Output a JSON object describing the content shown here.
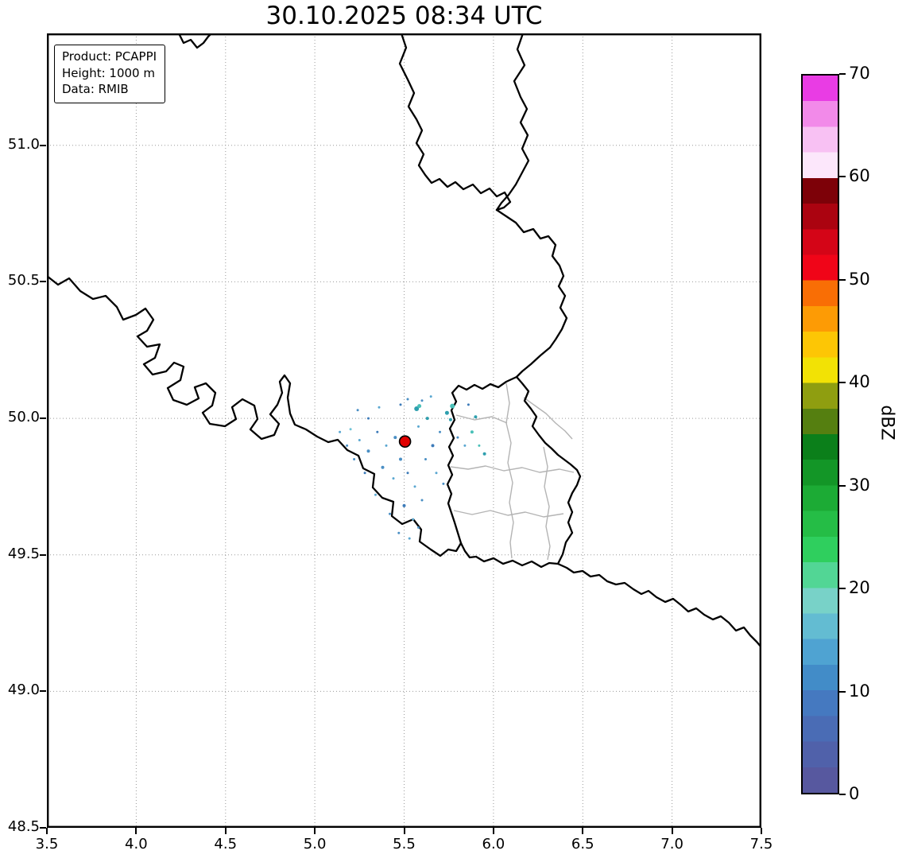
{
  "title": "30.10.2025 08:34 UTC",
  "info_box": {
    "lines": [
      "Product: PCAPPI",
      "Height: 1000 m",
      "Data: RMIB"
    ]
  },
  "chart_data": {
    "type": "map",
    "title": "30.10.2025 08:34 UTC",
    "xlim": [
      3.5,
      7.5
    ],
    "ylim": [
      48.5,
      51.41
    ],
    "x_ticks": [
      3.5,
      4.0,
      4.5,
      5.0,
      5.5,
      6.0,
      6.5,
      7.0,
      7.5
    ],
    "x_tick_labels": [
      "3.5",
      "4.0",
      "4.5",
      "5.0",
      "5.5",
      "6.0",
      "6.5",
      "7.0",
      "7.5"
    ],
    "y_ticks": [
      48.5,
      49.0,
      49.5,
      50.0,
      50.5,
      51.0
    ],
    "y_tick_labels": [
      "48.5",
      "49.0",
      "49.5",
      "50.0",
      "50.5",
      "51.0"
    ],
    "grid": true,
    "radar_site": {
      "lon": 5.505,
      "lat": 49.915,
      "color": "#e00000",
      "r": 7
    },
    "echo_colors": [
      "#4a8fc4",
      "#5aa7d1",
      "#3d7bb9",
      "#6fc3d6",
      "#2e9fae",
      "#49c0b8"
    ],
    "echoes": [
      [
        5.45,
        49.93,
        2,
        0
      ],
      [
        5.4,
        49.9,
        1.5,
        1
      ],
      [
        5.35,
        49.95,
        1.5,
        2
      ],
      [
        5.3,
        49.88,
        2,
        0
      ],
      [
        5.25,
        49.92,
        1.5,
        1
      ],
      [
        5.2,
        49.96,
        1.5,
        3
      ],
      [
        5.48,
        49.85,
        2,
        0
      ],
      [
        5.52,
        49.8,
        1.5,
        2
      ],
      [
        5.44,
        49.78,
        1.5,
        1
      ],
      [
        5.38,
        49.82,
        2,
        0
      ],
      [
        5.56,
        49.75,
        1.5,
        1
      ],
      [
        5.6,
        49.7,
        1.5,
        0
      ],
      [
        5.5,
        49.68,
        2,
        2
      ],
      [
        5.42,
        49.65,
        1.5,
        0
      ],
      [
        5.55,
        49.63,
        1.5,
        1
      ],
      [
        5.62,
        49.85,
        1.5,
        0
      ],
      [
        5.66,
        49.9,
        2,
        2
      ],
      [
        5.7,
        49.95,
        1.5,
        0
      ],
      [
        5.58,
        49.97,
        1.5,
        1
      ],
      [
        5.63,
        50.0,
        2,
        4
      ],
      [
        5.57,
        50.035,
        3,
        4
      ],
      [
        5.585,
        50.045,
        2.5,
        5
      ],
      [
        5.74,
        50.02,
        2.5,
        4
      ],
      [
        5.77,
        50.045,
        3,
        5
      ],
      [
        5.76,
        49.995,
        2,
        4
      ],
      [
        5.8,
        49.93,
        1.5,
        0
      ],
      [
        5.84,
        49.9,
        1.5,
        1
      ],
      [
        5.3,
        50.0,
        1.5,
        2
      ],
      [
        5.24,
        50.03,
        1.5,
        0
      ],
      [
        5.36,
        50.04,
        1.5,
        1
      ],
      [
        5.18,
        49.9,
        1.5,
        0
      ],
      [
        5.14,
        49.95,
        1.5,
        1
      ],
      [
        5.48,
        50.05,
        1.5,
        2
      ],
      [
        5.52,
        50.07,
        1.5,
        0
      ],
      [
        5.68,
        49.8,
        1.5,
        1
      ],
      [
        5.72,
        49.76,
        1.5,
        0
      ],
      [
        5.28,
        49.8,
        1.5,
        2
      ],
      [
        5.22,
        49.85,
        1.5,
        0
      ],
      [
        5.34,
        49.72,
        1.5,
        1
      ],
      [
        5.47,
        49.58,
        1.5,
        0
      ],
      [
        5.53,
        49.56,
        1.5,
        1
      ],
      [
        5.58,
        49.6,
        1.5,
        0
      ],
      [
        5.88,
        49.95,
        2,
        5
      ],
      [
        5.9,
        50.005,
        2,
        4
      ],
      [
        5.86,
        50.05,
        1.5,
        2
      ],
      [
        5.6,
        50.065,
        1.5,
        0
      ],
      [
        5.65,
        50.08,
        1.5,
        1
      ],
      [
        5.92,
        49.9,
        1.5,
        5
      ],
      [
        5.95,
        49.87,
        2,
        4
      ]
    ],
    "colorbar": {
      "label": "dBZ",
      "min": 0,
      "max": 70,
      "ticks": [
        0,
        10,
        20,
        30,
        40,
        50,
        60,
        70
      ],
      "colors": [
        "#57589f",
        "#5061aa",
        "#4a6cb5",
        "#4579c0",
        "#428cc8",
        "#4fa3d2",
        "#63bcd2",
        "#78d2c8",
        "#52d695",
        "#2fcf5e",
        "#25bd46",
        "#1cab35",
        "#139627",
        "#0b7f1a",
        "#557f10",
        "#8f9e10",
        "#f2e205",
        "#fdc605",
        "#fd9b05",
        "#f96e05",
        "#f00518",
        "#d40517",
        "#ab0310",
        "#7d0108",
        "#fce7fb",
        "#f8c1f3",
        "#f28ae9",
        "#e93ce4"
      ]
    }
  }
}
